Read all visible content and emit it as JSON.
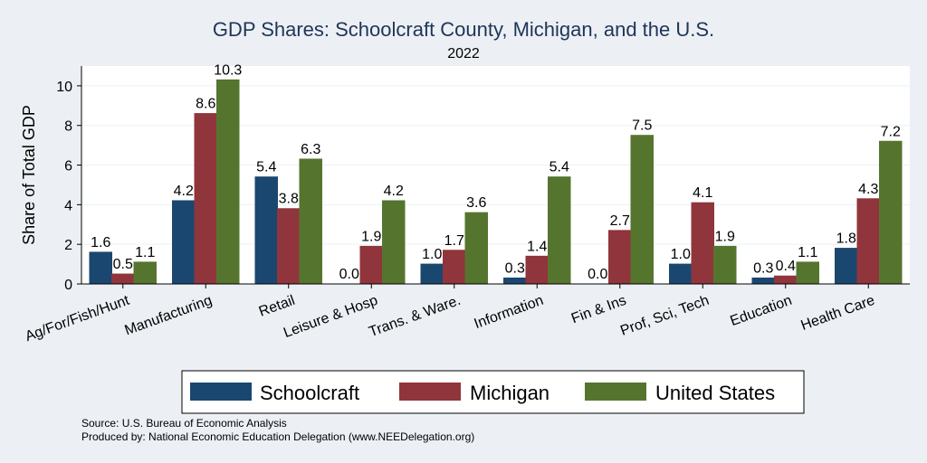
{
  "chart_data": {
    "type": "bar",
    "title": "GDP Shares: Schoolcraft County, Michigan, and the U.S.",
    "subtitle": "2022",
    "ylabel": "Share of Total GDP",
    "xlabel": "",
    "ylim": [
      0,
      11
    ],
    "yticks": [
      0,
      2,
      4,
      6,
      8,
      10
    ],
    "grid": true,
    "legend_position": "bottom",
    "categories": [
      "Ag/For/Fish/Hunt",
      "Manufacturing",
      "Retail",
      "Leisure & Hosp",
      "Trans. & Ware.",
      "Information",
      "Fin & Ins",
      "Prof, Sci, Tech",
      "Education",
      "Health Care"
    ],
    "series": [
      {
        "name": "Schoolcraft",
        "color": "#1a476f",
        "values": [
          1.6,
          4.2,
          5.4,
          0.0,
          1.0,
          0.3,
          0.0,
          1.0,
          0.3,
          1.8
        ]
      },
      {
        "name": "Michigan",
        "color": "#90353b",
        "values": [
          0.5,
          8.6,
          3.8,
          1.9,
          1.7,
          1.4,
          2.7,
          4.1,
          0.4,
          4.3
        ]
      },
      {
        "name": "United States",
        "color": "#55752f",
        "values": [
          1.1,
          10.3,
          6.3,
          4.2,
          3.6,
          5.4,
          7.5,
          1.9,
          1.1,
          7.2
        ]
      }
    ],
    "value_labels": [
      [
        "1.6",
        "4.2",
        "5.4",
        "0.0",
        "1.0",
        "0.3",
        "0.0",
        "1.0",
        "0.3",
        "1.8"
      ],
      [
        "0.5",
        "8.6",
        "3.8",
        "1.9",
        "1.7",
        "1.4",
        "2.7",
        "4.1",
        "0.4",
        "4.3"
      ],
      [
        "1.1",
        "10.3",
        "6.3",
        "4.2",
        "3.6",
        "5.4",
        "7.5",
        "1.9",
        "1.1",
        "7.2"
      ]
    ]
  },
  "footer": {
    "source": "Source: U.S. Bureau of Economic Analysis",
    "produced_by": "Produced by: National Economic Education Delegation (www.NEEDelegation.org)"
  }
}
